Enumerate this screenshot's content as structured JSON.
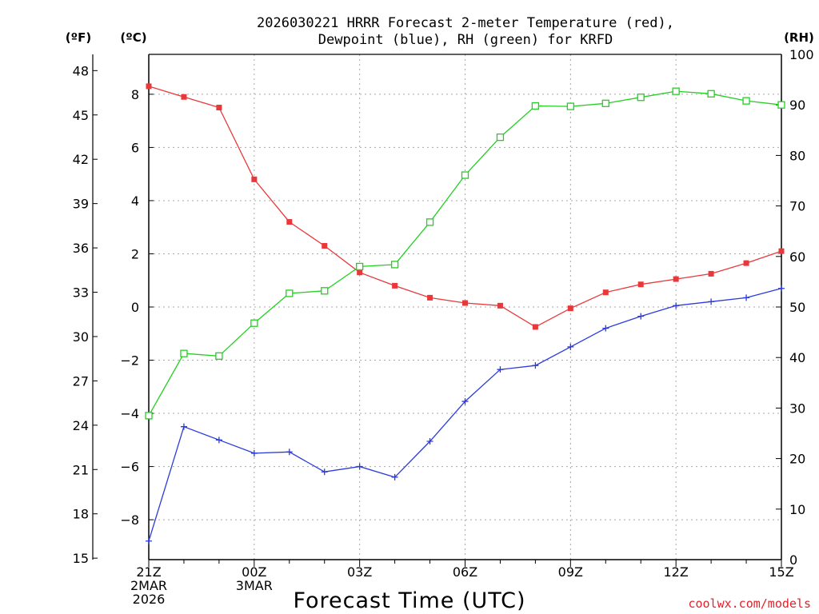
{
  "chart_data": {
    "type": "line",
    "title_line1": "2026030221 HRRR Forecast 2-meter Temperature (red),",
    "title_line2": "Dewpoint (blue), RH (green) for KRFD",
    "left_outer_unit": "(ºF)",
    "left_inner_unit": "(ºC)",
    "right_unit": "(RH)",
    "xlabel": "Forecast Time (UTC)",
    "credit": "coolwx.com/models",
    "x_hours": [
      0,
      1,
      2,
      3,
      4,
      5,
      6,
      7,
      8,
      9,
      10,
      11,
      12,
      13,
      14,
      15,
      16,
      17,
      18
    ],
    "x_ticks": [
      {
        "hour": 0,
        "lines": [
          "21Z",
          "2MAR",
          "2026"
        ]
      },
      {
        "hour": 3,
        "lines": [
          "00Z",
          "3MAR"
        ]
      },
      {
        "hour": 6,
        "lines": [
          "03Z"
        ]
      },
      {
        "hour": 9,
        "lines": [
          "06Z"
        ]
      },
      {
        "hour": 12,
        "lines": [
          "09Z"
        ]
      },
      {
        "hour": 15,
        "lines": [
          "12Z"
        ]
      },
      {
        "hour": 18,
        "lines": [
          "15Z"
        ]
      }
    ],
    "celsius_range": [
      -9.5,
      9.5
    ],
    "celsius_ticks": [
      -8,
      -6,
      -4,
      -2,
      0,
      2,
      4,
      6,
      8
    ],
    "celsius_tick_labels": [
      "−8",
      "−6",
      "−4",
      "−2",
      "0",
      "2",
      "4",
      "6",
      "8"
    ],
    "fahrenheit_ticks": [
      15,
      18,
      21,
      24,
      27,
      30,
      33,
      36,
      39,
      42,
      45,
      48
    ],
    "rh_range": [
      0,
      100
    ],
    "rh_ticks": [
      0,
      10,
      20,
      30,
      40,
      50,
      60,
      70,
      80,
      90,
      100
    ],
    "series": [
      {
        "name": "2-meter Temperature",
        "unit": "C",
        "color": "#e8383a",
        "values": [
          8.3,
          7.9,
          7.5,
          4.8,
          3.2,
          2.3,
          1.3,
          0.8,
          0.35,
          0.15,
          0.05,
          -0.75,
          -0.05,
          0.55,
          0.85,
          1.05,
          1.25,
          1.65,
          2.1
        ]
      },
      {
        "name": "Dewpoint",
        "unit": "C",
        "color": "#2a3adf",
        "values": [
          -8.8,
          -4.5,
          -5.0,
          -5.5,
          -5.45,
          -6.2,
          -6.0,
          -6.4,
          -5.05,
          -3.55,
          -2.35,
          -2.2,
          -1.5,
          -0.8,
          -0.35,
          0.05,
          0.2,
          0.35,
          0.7
        ]
      },
      {
        "name": "RH",
        "unit": "%",
        "color": "#22d020",
        "values": [
          28.5,
          40.8,
          40.3,
          46.8,
          52.7,
          53.2,
          58.0,
          58.4,
          66.8,
          76.1,
          83.6,
          89.8,
          89.7,
          90.3,
          91.5,
          92.7,
          92.2,
          90.8,
          90.0
        ]
      }
    ]
  }
}
